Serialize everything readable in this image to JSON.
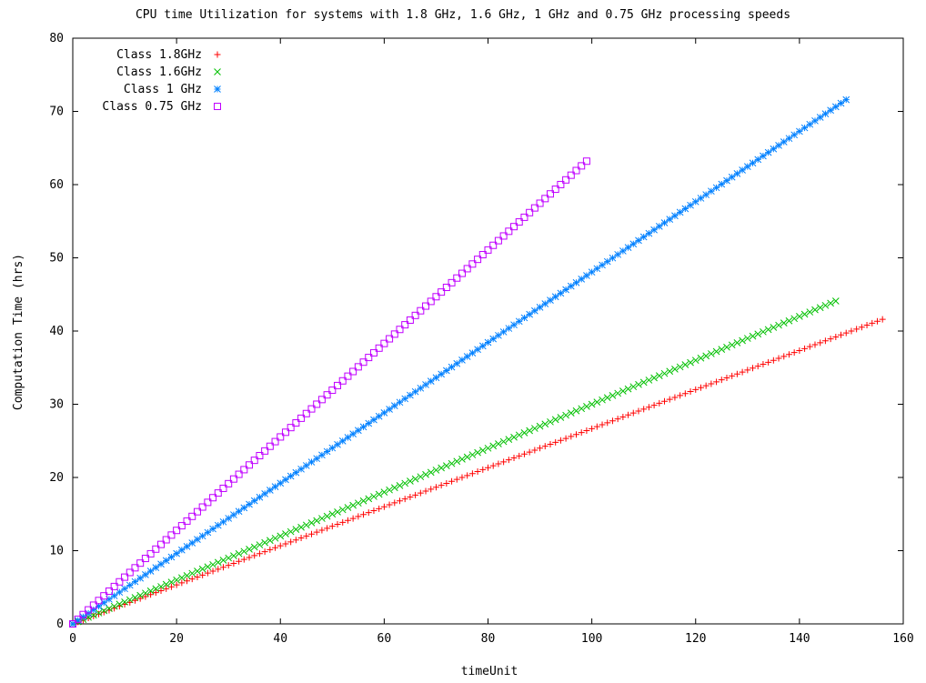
{
  "chart_data": {
    "type": "scatter",
    "title": "CPU time Utilization for systems with 1.8 GHz, 1.6 GHz, 1 GHz and 0.75 GHz processing speeds",
    "xlabel": "timeUnit",
    "ylabel": "Computation Time (hrs)",
    "xlim": [
      0,
      160
    ],
    "ylim": [
      0,
      80
    ],
    "xticks": [
      0,
      20,
      40,
      60,
      80,
      100,
      120,
      140,
      160
    ],
    "yticks": [
      0,
      10,
      20,
      30,
      40,
      50,
      60,
      70,
      80
    ],
    "grid": false,
    "legend_position": "top-left",
    "series": [
      {
        "name": "Class 1.8GHz",
        "color": "#ff0000",
        "marker": "plus",
        "x_start": 0,
        "x_end": 156,
        "x_step": 1,
        "y_start": 0,
        "y_end": 41.6
      },
      {
        "name": "Class 1.6GHz",
        "color": "#00c000",
        "marker": "cross",
        "x_start": 0,
        "x_end": 147,
        "x_step": 1,
        "y_start": 0,
        "y_end": 44.1
      },
      {
        "name": "Class 1 GHz",
        "color": "#0080ff",
        "marker": "star",
        "x_start": 0,
        "x_end": 149,
        "x_step": 1,
        "y_start": 0,
        "y_end": 71.6
      },
      {
        "name": "Class 0.75 GHz",
        "color": "#c000ff",
        "marker": "square",
        "x_start": 0,
        "x_end": 99,
        "x_step": 1,
        "y_start": 0,
        "y_end": 63.2
      }
    ]
  }
}
